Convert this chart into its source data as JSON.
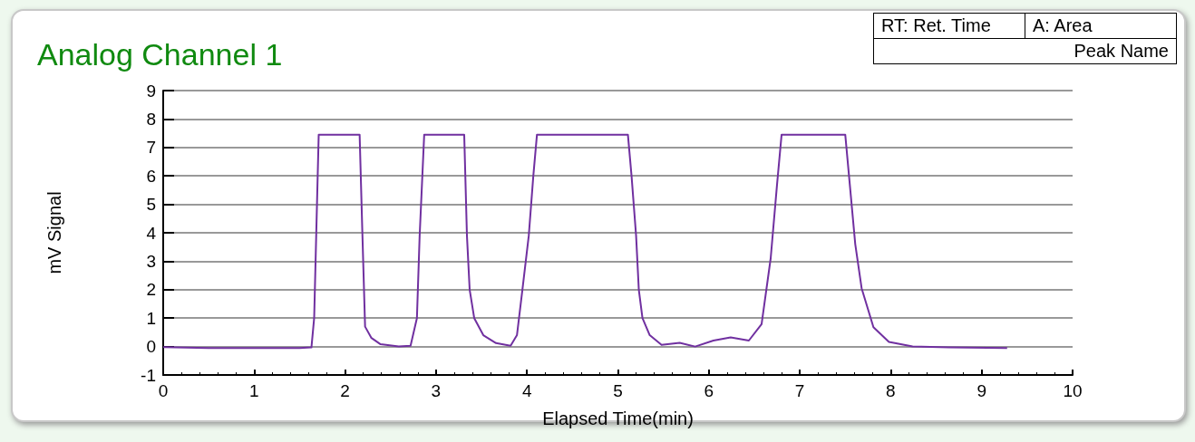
{
  "chart_data": {
    "type": "line",
    "title": "Analog Channel 1",
    "xlabel": "Elapsed Time(min)",
    "ylabel": "mV Signal",
    "annotations": [
      "RT: Ret. Time",
      "A: Area",
      "Peak Name"
    ],
    "xlim": [
      0,
      10
    ],
    "xticks": [
      0,
      1,
      2,
      3,
      4,
      5,
      6,
      7,
      8,
      9,
      10
    ],
    "ylim": [
      -1,
      9
    ],
    "yticks": [
      -1,
      0,
      1,
      2,
      3,
      4,
      5,
      6,
      7,
      8,
      9
    ],
    "grid": "y",
    "marker": "none",
    "line_style": "solid",
    "series": [
      {
        "color": "#7030a0",
        "x": [
          0,
          0.5,
          1.0,
          1.5,
          1.63,
          1.66,
          1.71,
          2.16,
          2.19,
          2.22,
          2.29,
          2.39,
          2.59,
          2.72,
          2.79,
          2.82,
          2.87,
          3.31,
          3.34,
          3.37,
          3.42,
          3.52,
          3.66,
          3.82,
          3.89,
          3.95,
          4.02,
          4.07,
          4.11,
          5.11,
          5.15,
          5.2,
          5.23,
          5.27,
          5.35,
          5.48,
          5.68,
          5.85,
          6.05,
          6.24,
          6.44,
          6.58,
          6.68,
          6.75,
          6.8,
          7.5,
          7.55,
          7.61,
          7.68,
          7.81,
          7.98,
          8.24,
          8.64,
          9.28
        ],
        "values": [
          -0.02,
          -0.05,
          -0.05,
          -0.05,
          -0.03,
          1.0,
          7.45,
          7.45,
          4.0,
          0.7,
          0.3,
          0.08,
          0.0,
          0.03,
          1.0,
          3.9,
          7.45,
          7.45,
          3.9,
          2.0,
          1.0,
          0.4,
          0.12,
          0.03,
          0.4,
          2.0,
          3.9,
          6.0,
          7.45,
          7.45,
          6.0,
          3.9,
          2.0,
          1.0,
          0.4,
          0.06,
          0.13,
          0.0,
          0.21,
          0.32,
          0.21,
          0.79,
          3.1,
          5.7,
          7.45,
          7.45,
          5.7,
          3.6,
          2.05,
          0.68,
          0.16,
          0.0,
          -0.03,
          -0.05
        ]
      }
    ]
  }
}
